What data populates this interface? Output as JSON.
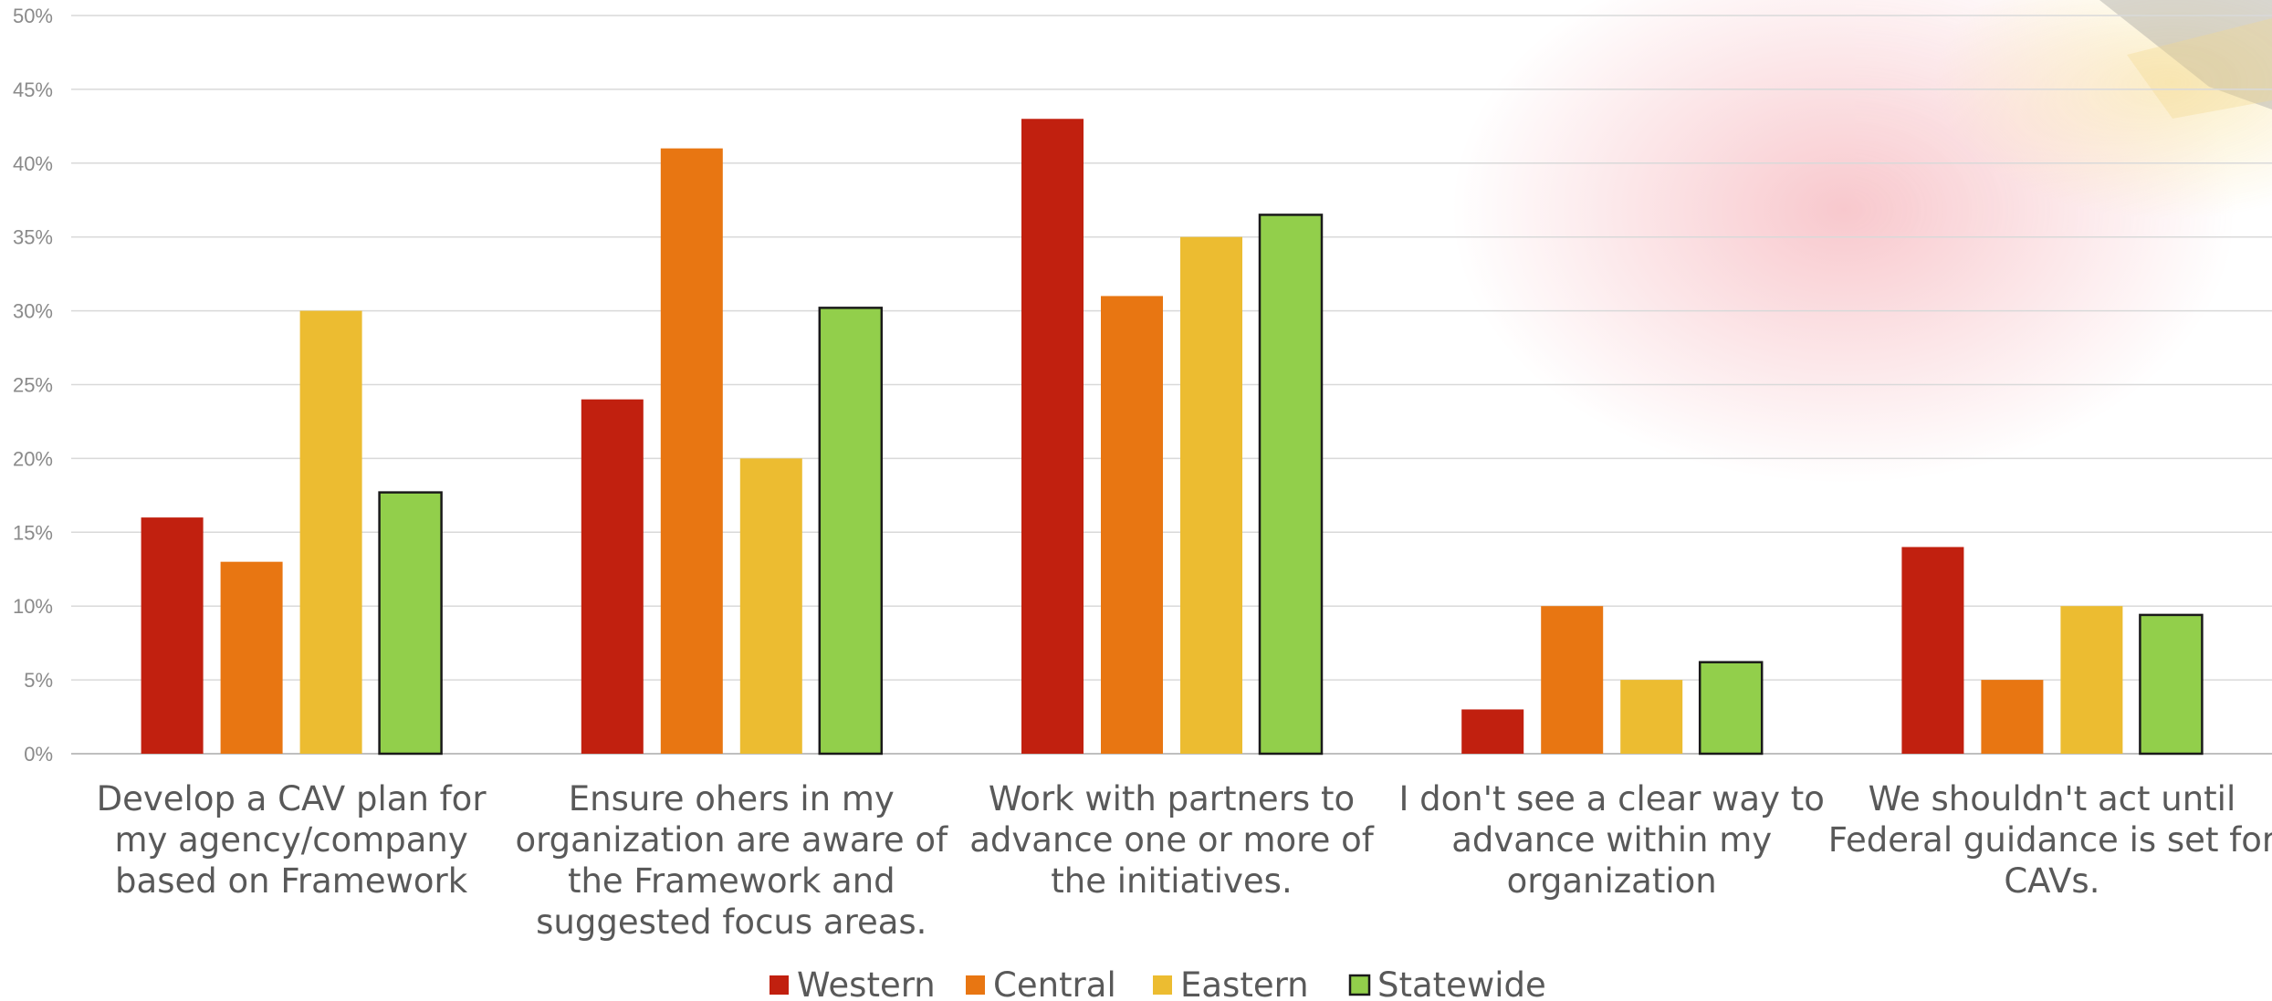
{
  "chart_data": {
    "type": "bar",
    "categories": [
      "Develop a CAV plan for my agency/company based on Framework",
      "Ensure ohers in my organization are aware of the Framework and suggested focus areas.",
      "Work with partners to advance one or more of the initiatives.",
      "I don't see a clear way to advance within my organization",
      "We shouldn't act until Federal guidance is set for CAVs."
    ],
    "category_lines": [
      [
        "Develop a CAV plan for",
        "my agency/company",
        "based on Framework"
      ],
      [
        "Ensure ohers in my",
        "organization are aware of",
        "the Framework and",
        "suggested focus areas."
      ],
      [
        "Work with partners to",
        "advance one or more of",
        "the initiatives."
      ],
      [
        "I don't see a clear way to",
        "advance within my",
        "organization"
      ],
      [
        "We shouldn't act until",
        "Federal guidance is set for",
        "CAVs."
      ]
    ],
    "series": [
      {
        "name": "Western",
        "color": "#c1200f",
        "values": [
          16,
          24,
          43,
          3,
          14
        ]
      },
      {
        "name": "Central",
        "color": "#e87612",
        "values": [
          13,
          41,
          31,
          10,
          5
        ]
      },
      {
        "name": "Eastern",
        "color": "#ecbc31",
        "values": [
          30,
          20,
          35,
          5,
          10
        ]
      },
      {
        "name": "Statewide",
        "color": "#92cf4b",
        "outline": "#1a1a1a",
        "values": [
          17.7,
          30.2,
          36.5,
          6.2,
          9.4
        ]
      }
    ],
    "ylim": [
      0,
      50
    ],
    "yticks": [
      "0%",
      "5%",
      "10%",
      "15%",
      "20%",
      "25%",
      "30%",
      "35%",
      "40%",
      "45%",
      "50%"
    ],
    "grid": true,
    "legend_position": "bottom",
    "title": "",
    "xlabel": "",
    "ylabel": ""
  }
}
